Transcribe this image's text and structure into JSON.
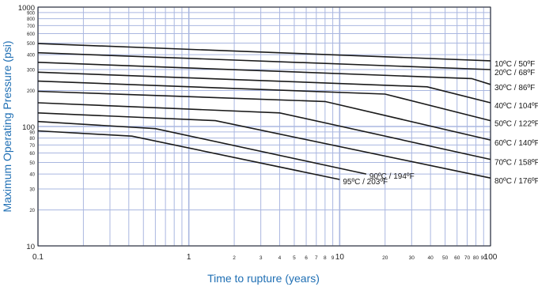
{
  "chart_data": {
    "type": "line",
    "title": "",
    "xlabel": "Time to rupture (years)",
    "ylabel": "Maximum Operating Pressure (psi)",
    "x_scale": "log",
    "y_scale": "log",
    "xlim": [
      0.1,
      100
    ],
    "ylim": [
      10,
      1000
    ],
    "grid": true,
    "colors": {
      "grid": "#aab7e0",
      "axis_label": "#1f6fb4",
      "line": "#1a1a1a",
      "frame": "#222222"
    },
    "x_ticks": [
      {
        "v": 0.1,
        "label": "0.1",
        "major": true
      },
      {
        "v": 1,
        "label": "1",
        "major": true
      },
      {
        "v": 2,
        "label": "2",
        "major": false
      },
      {
        "v": 3,
        "label": "3",
        "major": false
      },
      {
        "v": 4,
        "label": "4",
        "major": false
      },
      {
        "v": 5,
        "label": "5",
        "major": false
      },
      {
        "v": 6,
        "label": "6",
        "major": false
      },
      {
        "v": 7,
        "label": "7",
        "major": false
      },
      {
        "v": 8,
        "label": "8",
        "major": false
      },
      {
        "v": 9,
        "label": "9",
        "major": false
      },
      {
        "v": 10,
        "label": "10",
        "major": true
      },
      {
        "v": 20,
        "label": "20",
        "major": false
      },
      {
        "v": 30,
        "label": "30",
        "major": false
      },
      {
        "v": 40,
        "label": "40",
        "major": false
      },
      {
        "v": 50,
        "label": "50",
        "major": false
      },
      {
        "v": 60,
        "label": "60",
        "major": false
      },
      {
        "v": 70,
        "label": "70",
        "major": false
      },
      {
        "v": 80,
        "label": "80",
        "major": false
      },
      {
        "v": 90,
        "label": "90",
        "major": false
      },
      {
        "v": 100,
        "label": "100",
        "major": true
      }
    ],
    "x_minor_gridlines": [
      0.2,
      0.3,
      0.4,
      0.5,
      0.6,
      0.7,
      0.8,
      0.9
    ],
    "y_ticks": [
      {
        "v": 10,
        "label": "10",
        "major": true
      },
      {
        "v": 20,
        "label": "20",
        "major": false
      },
      {
        "v": 30,
        "label": "30",
        "major": false
      },
      {
        "v": 40,
        "label": "40",
        "major": false
      },
      {
        "v": 50,
        "label": "50",
        "major": false
      },
      {
        "v": 60,
        "label": "60",
        "major": false
      },
      {
        "v": 70,
        "label": "70",
        "major": false
      },
      {
        "v": 80,
        "label": "80",
        "major": false
      },
      {
        "v": 90,
        "label": "90",
        "major": false
      },
      {
        "v": 100,
        "label": "100",
        "major": true
      },
      {
        "v": 200,
        "label": "200",
        "major": false
      },
      {
        "v": 300,
        "label": "300",
        "major": false
      },
      {
        "v": 400,
        "label": "400",
        "major": false
      },
      {
        "v": 500,
        "label": "500",
        "major": false
      },
      {
        "v": 600,
        "label": "600",
        "major": false
      },
      {
        "v": 700,
        "label": "700",
        "major": false
      },
      {
        "v": 800,
        "label": "800",
        "major": false
      },
      {
        "v": 900,
        "label": "900",
        "major": false
      },
      {
        "v": 1000,
        "label": "1000",
        "major": true
      }
    ],
    "series": [
      {
        "name": "10ºC / 50ºF",
        "points": [
          [
            0.1,
            495
          ],
          [
            100,
            355
          ]
        ]
      },
      {
        "name": "20ºC / 68ºF",
        "points": [
          [
            0.1,
            415
          ],
          [
            100,
            300
          ]
        ]
      },
      {
        "name": "30ºC / 86ºF",
        "points": [
          [
            0.1,
            345
          ],
          [
            75,
            252
          ],
          [
            100,
            225
          ]
        ]
      },
      {
        "name": "40ºC / 104ºF",
        "points": [
          [
            0.1,
            285
          ],
          [
            38,
            215
          ],
          [
            100,
            158
          ]
        ]
      },
      {
        "name": "50ºC / 122ºF",
        "points": [
          [
            0.1,
            240
          ],
          [
            20,
            187
          ],
          [
            100,
            112
          ]
        ]
      },
      {
        "name": "60ºC / 140ºF",
        "points": [
          [
            0.1,
            197
          ],
          [
            8,
            162
          ],
          [
            100,
            77
          ]
        ]
      },
      {
        "name": "70ºC / 158ºF",
        "points": [
          [
            0.1,
            158
          ],
          [
            4,
            130
          ],
          [
            100,
            53
          ]
        ]
      },
      {
        "name": "80ºC / 176ºF",
        "points": [
          [
            0.1,
            130
          ],
          [
            1.5,
            112
          ],
          [
            100,
            37
          ]
        ]
      },
      {
        "name": "90ºC / 194ºF",
        "points": [
          [
            0.1,
            110
          ],
          [
            0.6,
            96
          ],
          [
            15,
            40
          ]
        ]
      },
      {
        "name": "95ºC / 203ºF",
        "points": [
          [
            0.1,
            92
          ],
          [
            0.42,
            83
          ],
          [
            10,
            36
          ]
        ]
      }
    ]
  }
}
